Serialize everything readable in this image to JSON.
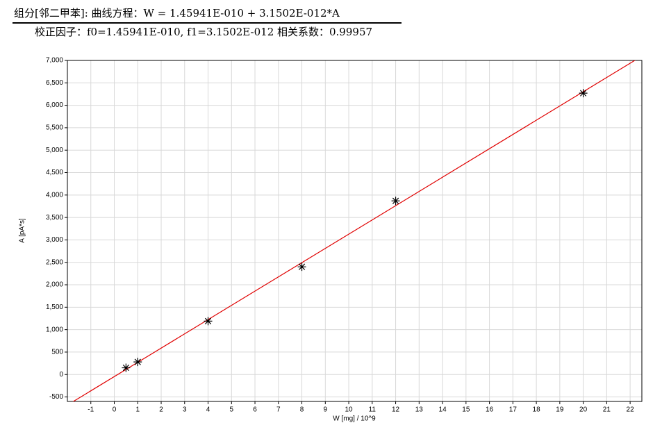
{
  "chart_data": {
    "type": "scatter",
    "title": "组分[邻二甲苯]:  曲线方程：W = 1.45941E-010 + 3.1502E-012*A",
    "subtitle": "校正因子：f0=1.45941E-010, f1=3.1502E-012  相关系数：0.99957",
    "x_label": "W [mg] / 10^9",
    "y_label": "A [pA*s]",
    "x": [
      0.5,
      1,
      4,
      8,
      12,
      20
    ],
    "values": [
      150,
      280,
      1190,
      2400,
      3870,
      6270
    ],
    "color": "#000000",
    "fit": {
      "type": "line",
      "x": [
        -2,
        22.5
      ],
      "values": [
        -681,
        7096
      ],
      "color": "#e00000"
    },
    "xlim": [
      -2,
      22.5
    ],
    "ylim": [
      -600,
      7000
    ],
    "xticks": [
      -1,
      0,
      1,
      2,
      3,
      4,
      5,
      6,
      7,
      8,
      9,
      10,
      11,
      12,
      13,
      14,
      15,
      16,
      17,
      18,
      19,
      20,
      21,
      22
    ],
    "yticks": [
      -500,
      0,
      500,
      {
        "value": 1000,
        "label": "1,000"
      },
      {
        "value": 1500,
        "label": "1,500"
      },
      {
        "value": 2000,
        "label": "2,000"
      },
      {
        "value": 2500,
        "label": "2,500"
      },
      {
        "value": 3000,
        "label": "3,000"
      },
      {
        "value": 3500,
        "label": "3,500"
      },
      {
        "value": 4000,
        "label": "4,000"
      },
      {
        "value": 4500,
        "label": "4,500"
      },
      {
        "value": 5000,
        "label": "5,000"
      },
      {
        "value": 5500,
        "label": "5,500"
      },
      {
        "value": 6000,
        "label": "6,000"
      },
      {
        "value": 6500,
        "label": "6,500"
      },
      {
        "value": 7000,
        "label": "7,000"
      }
    ],
    "grid": true
  }
}
